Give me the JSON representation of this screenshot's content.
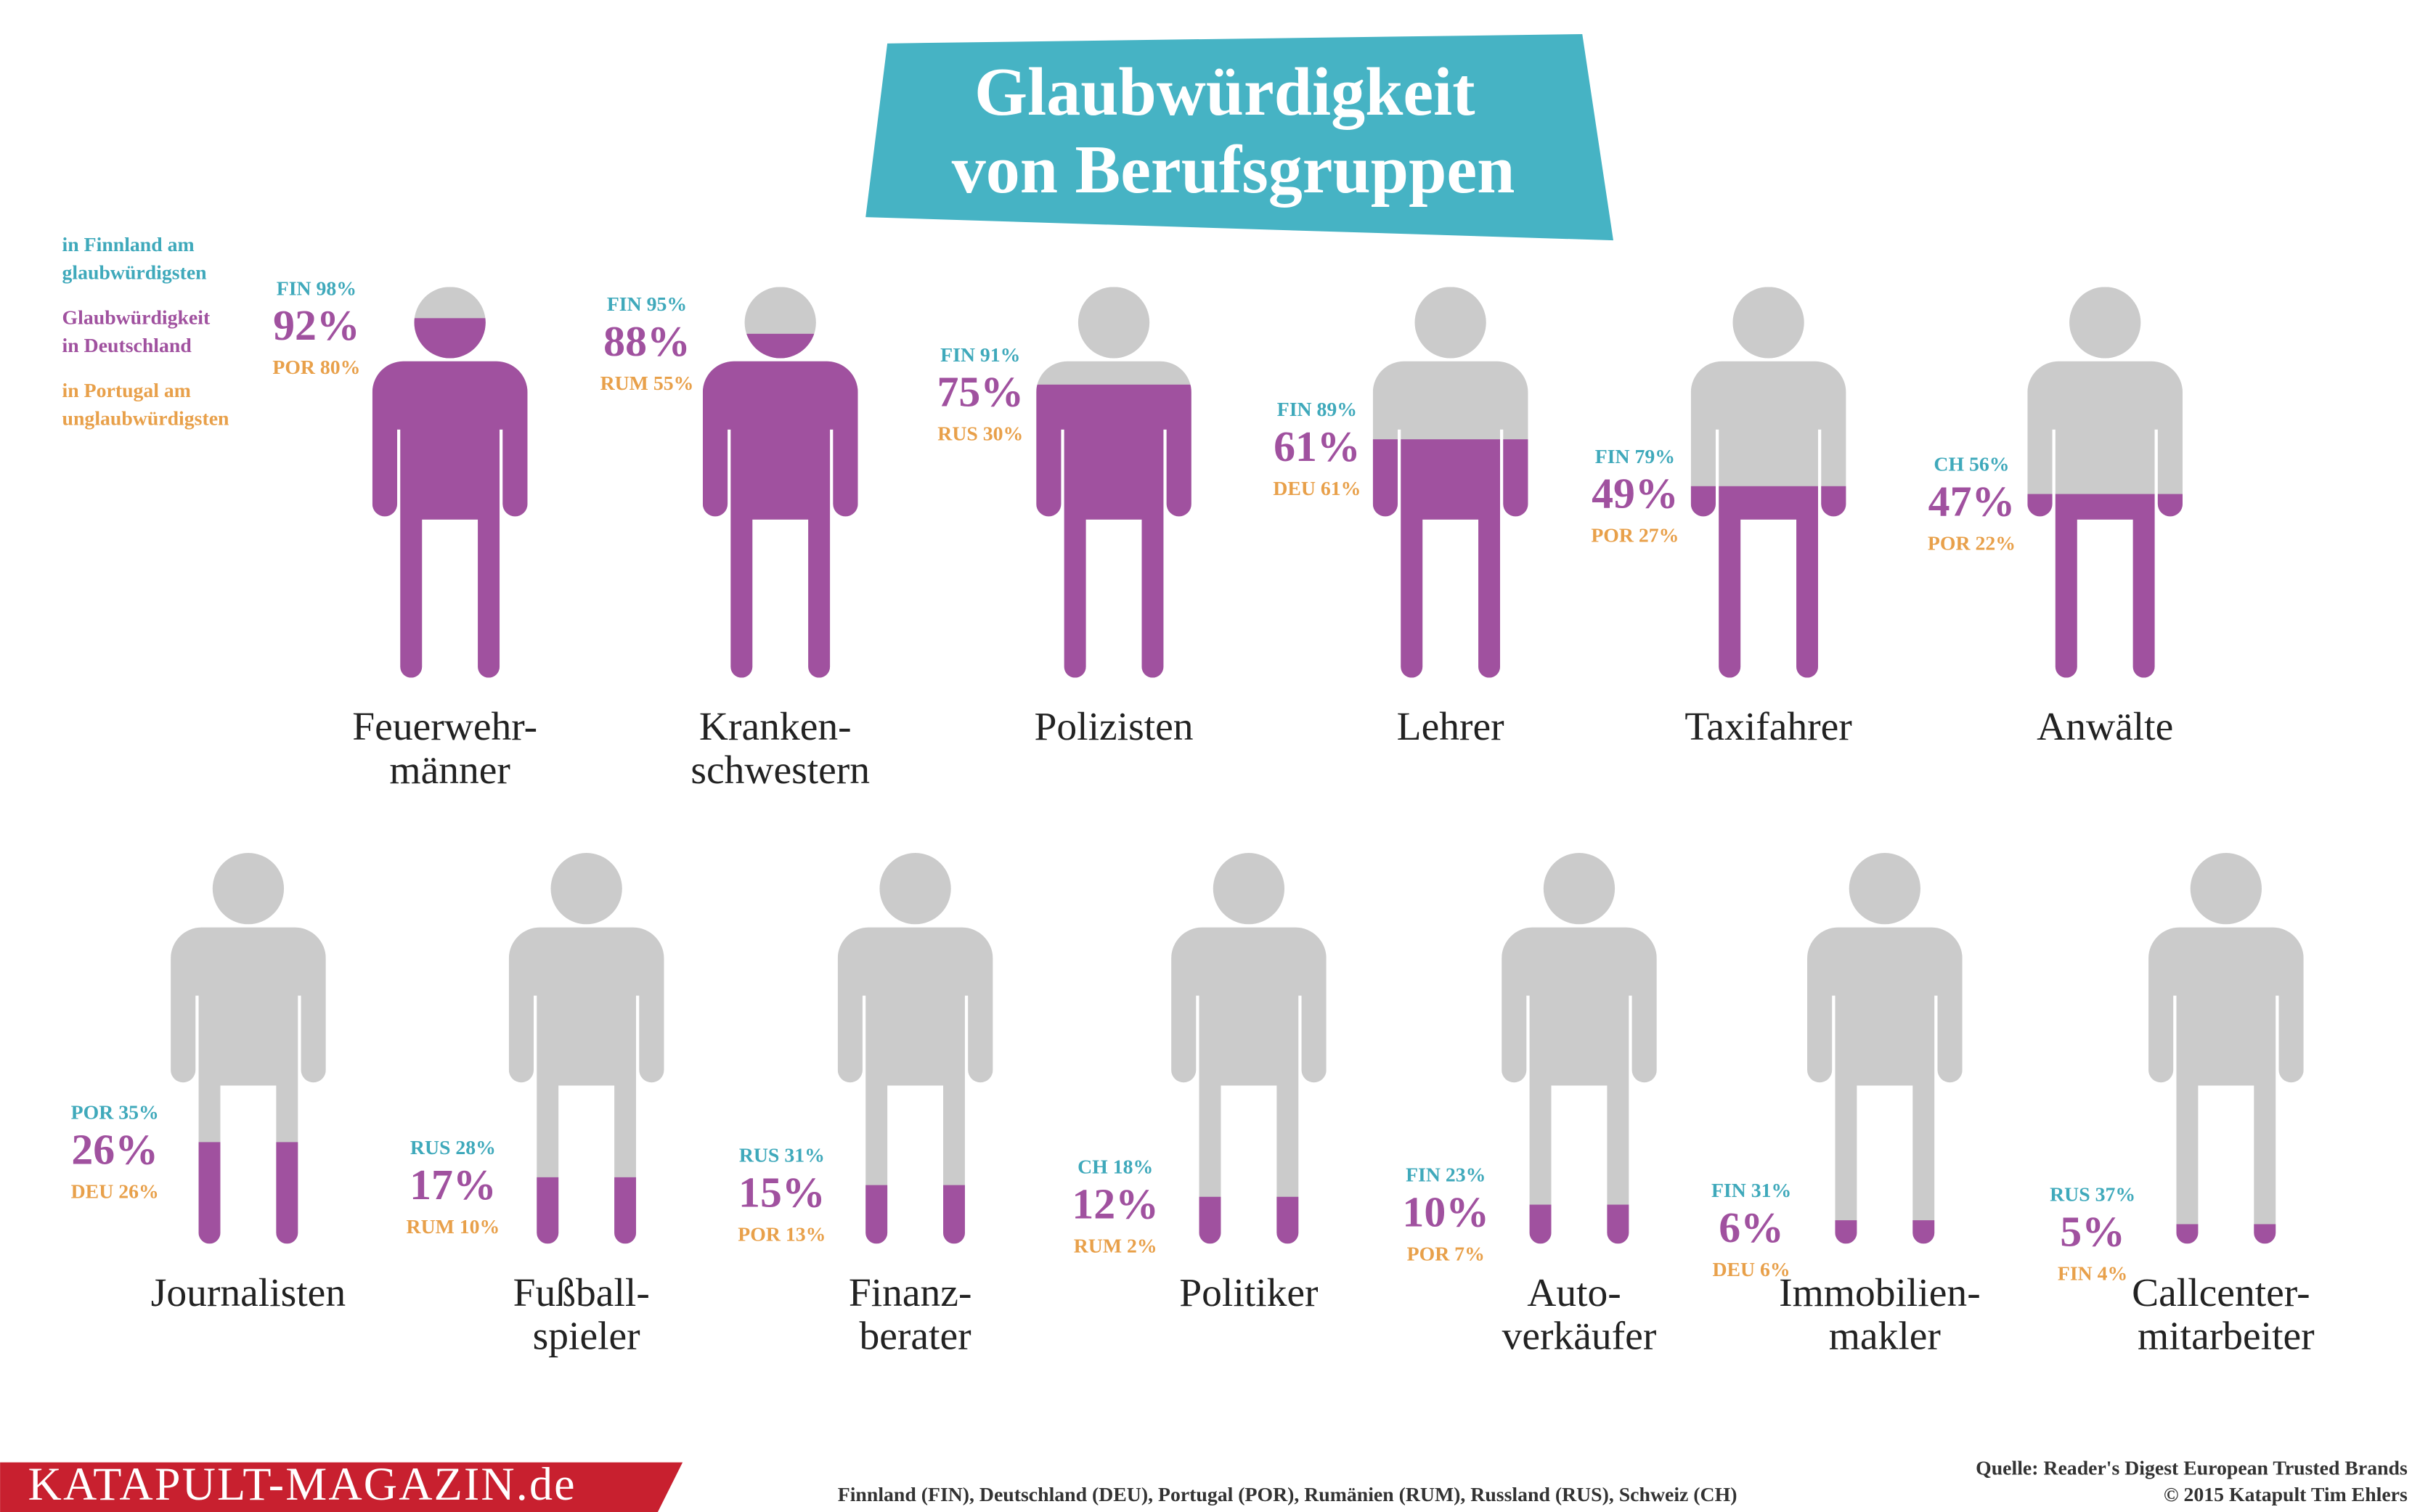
{
  "chart_data": {
    "type": "pictogram",
    "title": "Glaubwürdigkeit\nvon Berufsgruppen",
    "legend": [
      {
        "name": "in Finnland am\nglaubwürdigsten",
        "color": "#3fa9bb"
      },
      {
        "name": "Glaubwürdigkeit\nin Deutschland",
        "color": "#a0519f"
      },
      {
        "name": "in Portugal am\nunglaubwürdigsten",
        "color": "#e8a04a"
      }
    ],
    "categories": [
      "Feuerwehr-\nmänner",
      "Kranken-\nschwestern",
      "Polizisten",
      "Lehrer",
      "Taxifahrer",
      "Anwälte",
      "Journalisten",
      "Fußball-\nspieler",
      "Finanz-\nberater",
      "Politiker",
      "Auto-\nverkäufer",
      "Immobilien-\nmakler",
      "Callcenter-\nmitarbeiter"
    ],
    "values": [
      92,
      88,
      75,
      61,
      49,
      47,
      26,
      17,
      15,
      12,
      10,
      6,
      5
    ],
    "value_labels": [
      "92%",
      "88%",
      "75%",
      "61%",
      "49%",
      "47%",
      "26%",
      "17%",
      "15%",
      "12%",
      "10%",
      "6%",
      "5%"
    ],
    "high_labels": [
      "FIN 98%",
      "FIN 95%",
      "FIN 91%",
      "FIN 89%",
      "FIN 79%",
      "CH 56%",
      "POR 35%",
      "RUS 28%",
      "RUS 31%",
      "CH 18%",
      "FIN 23%",
      "FIN 31%",
      "RUS 37%"
    ],
    "low_labels": [
      "POR 80%",
      "RUM 55%",
      "RUS 30%",
      "DEU 61%",
      "POR 27%",
      "POR 22%",
      "DEU 26%",
      "RUM 10%",
      "POR 13%",
      "RUM 2%",
      "POR 7%",
      "DEU 6%",
      "FIN 4%"
    ],
    "color": "#a0519f",
    "empty_color": "#cbcbcb",
    "ylim": [
      0,
      100
    ]
  },
  "footer": {
    "brand": "KATAPULT-MAGAZIN.de",
    "countries": "Finnland (FIN), Deutschland (DEU), Portugal (POR), Rumänien (RUM), Russland (RUS), Schweiz (CH)",
    "source": "Quelle: Reader's Digest European Trusted Brands",
    "copyright": "© 2015 Katapult Tim Ehlers"
  }
}
